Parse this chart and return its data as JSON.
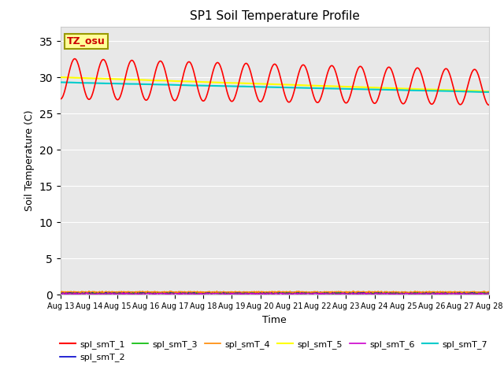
{
  "title": "SP1 Soil Temperature Profile",
  "xlabel": "Time",
  "ylabel": "Soil Temperature (C)",
  "ylim": [
    0,
    37
  ],
  "yticks": [
    0,
    5,
    10,
    15,
    20,
    25,
    30,
    35
  ],
  "date_labels": [
    "Aug 13",
    "Aug 14",
    "Aug 15",
    "Aug 16",
    "Aug 17",
    "Aug 18",
    "Aug 19",
    "Aug 20",
    "Aug 21",
    "Aug 22",
    "Aug 23",
    "Aug 24",
    "Aug 25",
    "Aug 26",
    "Aug 27",
    "Aug 28"
  ],
  "annotation_text": "TZ_osu",
  "annotation_color": "#cc0000",
  "annotation_bg": "#ffff99",
  "annotation_border": "#999900",
  "bg_color": "#e8e8e8",
  "series": {
    "spl_smT_1": {
      "color": "#ff0000",
      "linewidth": 1.2
    },
    "spl_smT_2": {
      "color": "#0000cc",
      "linewidth": 1.0
    },
    "spl_smT_3": {
      "color": "#00bb00",
      "linewidth": 1.0
    },
    "spl_smT_4": {
      "color": "#ff8800",
      "linewidth": 1.0
    },
    "spl_smT_5": {
      "color": "#ffff00",
      "linewidth": 1.5
    },
    "spl_smT_6": {
      "color": "#cc00cc",
      "linewidth": 1.0
    },
    "spl_smT_7": {
      "color": "#00cccc",
      "linewidth": 1.5
    }
  },
  "legend_fontsize": 8,
  "title_fontsize": 11
}
